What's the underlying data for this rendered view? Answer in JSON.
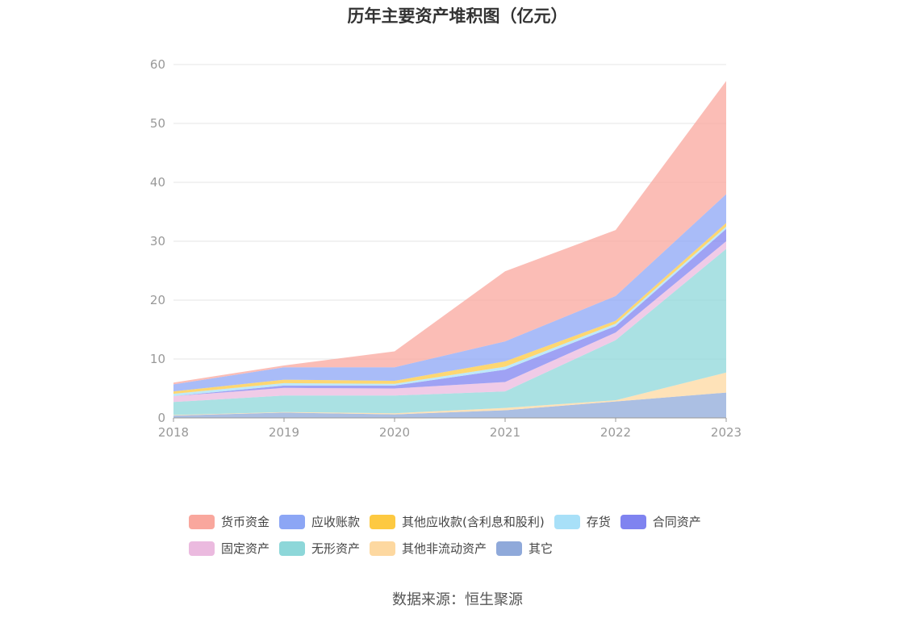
{
  "title": "历年主要资产堆积图（亿元）",
  "source": "数据来源：恒生聚源",
  "chart_data": {
    "type": "area",
    "stacked": true,
    "title": "历年主要资产堆积图（亿元）",
    "x": [
      "2018",
      "2019",
      "2020",
      "2021",
      "2022",
      "2023"
    ],
    "ylim": [
      0,
      60
    ],
    "yticks": [
      0,
      10,
      20,
      30,
      40,
      50,
      60
    ],
    "grid": true,
    "legend_position": "bottom",
    "series": [
      {
        "name": "其它",
        "color": "#8fa9da",
        "values": [
          0.4,
          0.9,
          0.6,
          1.3,
          2.8,
          4.3
        ]
      },
      {
        "name": "其他非流动资产",
        "color": "#fdd8a0",
        "values": [
          0.1,
          0.1,
          0.2,
          0.4,
          0.2,
          3.4
        ]
      },
      {
        "name": "无形资产",
        "color": "#8dd7d9",
        "values": [
          2.2,
          2.8,
          3.0,
          2.8,
          10.2,
          21.0
        ]
      },
      {
        "name": "固定资产",
        "color": "#ebbadf",
        "values": [
          1.0,
          1.3,
          1.2,
          1.6,
          1.3,
          1.3
        ]
      },
      {
        "name": "合同资产",
        "color": "#7f83f0",
        "values": [
          0.0,
          0.4,
          0.5,
          2.1,
          1.1,
          2.1
        ]
      },
      {
        "name": "存货",
        "color": "#a8e0f8",
        "values": [
          0.4,
          0.4,
          0.3,
          0.5,
          0.4,
          0.4
        ]
      },
      {
        "name": "其他应收款(含利息和股利)",
        "color": "#fdc941",
        "values": [
          0.4,
          0.6,
          0.5,
          0.9,
          0.5,
          0.6
        ]
      },
      {
        "name": "应收账款",
        "color": "#8ca6f5",
        "values": [
          1.2,
          2.1,
          2.3,
          3.4,
          4.2,
          4.9
        ]
      },
      {
        "name": "货币资金",
        "color": "#f9a79d",
        "values": [
          0.3,
          0.3,
          2.7,
          11.9,
          11.2,
          19.2
        ]
      }
    ],
    "legend": [
      "货币资金",
      "应收账款",
      "其他应收款(含利息和股利)",
      "存货",
      "合同资产",
      "固定资产",
      "无形资产",
      "其他非流动资产",
      "其它"
    ]
  },
  "legend_rows": [
    [
      {
        "label": "货币资金",
        "color": "#f9a79d"
      },
      {
        "label": "应收账款",
        "color": "#8ca6f5"
      },
      {
        "label": "其他应收款(含利息和股利)",
        "color": "#fdc941"
      },
      {
        "label": "存货",
        "color": "#a8e0f8"
      },
      {
        "label": "合同资产",
        "color": "#7f83f0"
      }
    ],
    [
      {
        "label": "固定资产",
        "color": "#ebbadf"
      },
      {
        "label": "无形资产",
        "color": "#8dd7d9"
      },
      {
        "label": "其他非流动资产",
        "color": "#fdd8a0"
      },
      {
        "label": "其它",
        "color": "#8fa9da"
      }
    ]
  ]
}
